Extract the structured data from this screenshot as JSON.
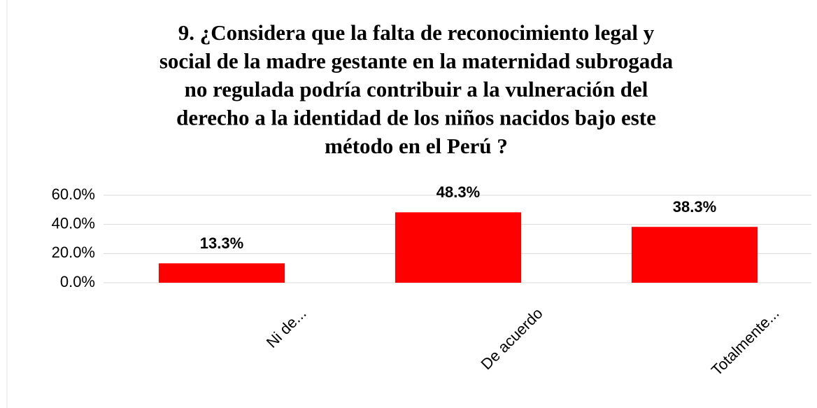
{
  "chart_data": {
    "type": "bar",
    "title": [
      "9. ¿Considera que la falta de reconocimiento legal y",
      "social de la madre gestante en la maternidad subrogada",
      "no regulada  podría contribuir a la vulneración del",
      "derecho a la identidad de los niños nacidos bajo este",
      "método en el Perú ?"
    ],
    "categories": [
      "Ni de...",
      "De acuerdo",
      "Totalmente..."
    ],
    "values": [
      13.3,
      48.3,
      38.3
    ],
    "value_labels": [
      "13.3%",
      "48.3%",
      "38.3%"
    ],
    "color": "#ff0000",
    "ylim": [
      0,
      60
    ],
    "yticks": [
      {
        "value": 0,
        "label": "0.0%"
      },
      {
        "value": 20,
        "label": "20.0%"
      },
      {
        "value": 40,
        "label": "40.0%"
      },
      {
        "value": 60,
        "label": "60.0%"
      }
    ],
    "grid": true
  }
}
